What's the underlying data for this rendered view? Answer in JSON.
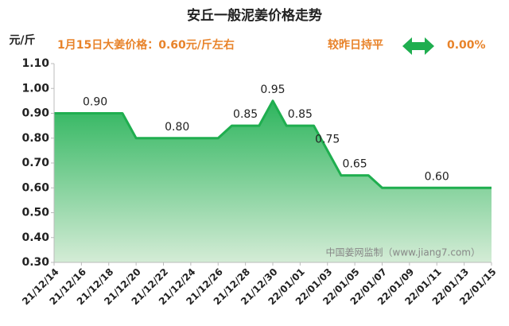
{
  "chart_data": {
    "type": "area",
    "title": "安丘一般泥姜价格走势",
    "y_unit": "元/斤",
    "price_note": "1月15日大姜价格：0.60元/斤左右",
    "change_note": "较昨日持平",
    "change_pct": "0.00%",
    "watermark": "中国姜网监制（www.jiang7.com）",
    "color": "#1fae4f",
    "categories": [
      "21/12/14",
      null,
      "21/12/16",
      null,
      "21/12/18",
      null,
      "21/12/20",
      null,
      "21/12/22",
      null,
      "21/12/24",
      null,
      "21/12/26",
      null,
      "21/12/28",
      null,
      "21/12/30",
      null,
      "22/01/01",
      null,
      "22/01/03",
      null,
      "22/01/05",
      null,
      "22/01/07",
      null,
      "22/01/09",
      null,
      "22/01/11",
      null,
      "22/01/13",
      null,
      "22/01/15"
    ],
    "values": [
      0.9,
      0.9,
      0.9,
      0.9,
      0.9,
      0.9,
      0.8,
      0.8,
      0.8,
      0.8,
      0.8,
      0.8,
      0.8,
      0.85,
      0.85,
      0.85,
      0.95,
      0.85,
      0.85,
      0.85,
      0.75,
      0.65,
      0.65,
      0.65,
      0.6,
      0.6,
      0.6,
      0.6,
      0.6,
      0.6,
      0.6,
      0.6,
      0.6
    ],
    "value_labels": [
      null,
      null,
      null,
      "0.90",
      null,
      null,
      null,
      null,
      null,
      "0.80",
      null,
      null,
      null,
      null,
      "0.85",
      null,
      "0.95",
      null,
      "0.85",
      null,
      "0.75",
      null,
      "0.65",
      null,
      null,
      null,
      null,
      null,
      "0.60",
      null,
      null,
      null,
      null
    ],
    "ylim": [
      0.3,
      1.1
    ],
    "yticks": [
      {
        "value": 0.3,
        "label": "0.30"
      },
      {
        "value": 0.4,
        "label": "0.40"
      },
      {
        "value": 0.5,
        "label": "0.50"
      },
      {
        "value": 0.6,
        "label": "0.60"
      },
      {
        "value": 0.7,
        "label": "0.70"
      },
      {
        "value": 0.8,
        "label": "0.80"
      },
      {
        "value": 0.9,
        "label": "0.90"
      },
      {
        "value": 1.0,
        "label": "1.00"
      },
      {
        "value": 1.1,
        "label": "1.10"
      }
    ],
    "grid": false
  }
}
